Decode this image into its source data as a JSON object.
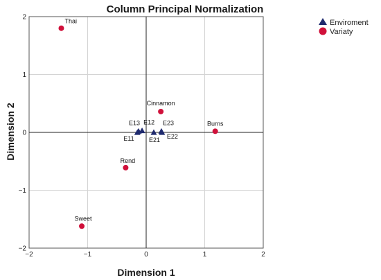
{
  "chart_data": {
    "type": "scatter",
    "title": "Column Principal Normalization",
    "xlabel": "Dimension 1",
    "ylabel": "Dimension 2",
    "xlim": [
      -2,
      2
    ],
    "ylim": [
      -2,
      2
    ],
    "xticks": [
      -2,
      -1,
      0,
      1,
      2
    ],
    "yticks": [
      -2,
      -1,
      0,
      1,
      2
    ],
    "tick_labels_x": [
      "−2",
      "−1",
      "0",
      "1",
      "2"
    ],
    "tick_labels_y": [
      "−2",
      "−1",
      "0",
      "1",
      "2"
    ],
    "grid": true,
    "legend_position": "top-right",
    "series": [
      {
        "name": "Enviroment",
        "marker": "triangle",
        "color": "#1f2a6e",
        "points": [
          {
            "label": "E11",
            "x": -0.15,
            "y": 0.0
          },
          {
            "label": "E12",
            "x": -0.07,
            "y": 0.03
          },
          {
            "label": "E13",
            "x": -0.13,
            "y": 0.02
          },
          {
            "label": "E21",
            "x": 0.13,
            "y": 0.0
          },
          {
            "label": "E22",
            "x": 0.27,
            "y": 0.0
          },
          {
            "label": "E23",
            "x": 0.26,
            "y": 0.02
          }
        ]
      },
      {
        "name": "Variaty",
        "marker": "circle",
        "color": "#d0103a",
        "points": [
          {
            "label": "Thai",
            "x": -1.45,
            "y": 1.8
          },
          {
            "label": "Cinnamon",
            "x": 0.25,
            "y": 0.36
          },
          {
            "label": "Burns",
            "x": 1.18,
            "y": 0.02
          },
          {
            "label": "Rend",
            "x": -0.35,
            "y": -0.61
          },
          {
            "label": "Sweet",
            "x": -1.1,
            "y": -1.62
          }
        ]
      }
    ]
  }
}
